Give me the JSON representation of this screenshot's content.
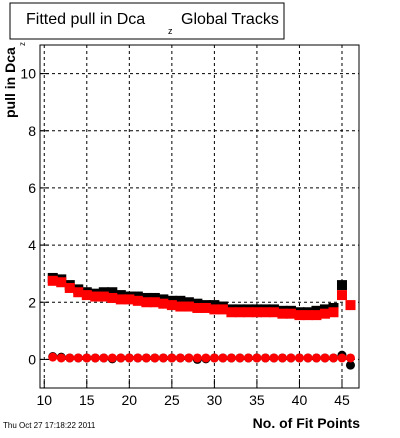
{
  "chart_data": {
    "type": "scatter",
    "title": "Fitted pull in Dca",
    "title_subscript": "z",
    "title_tail": "Global Tracks",
    "y_label": "pull in Dca",
    "y_label_subscript": "z",
    "x_label": "No. of Fit Points",
    "timestamp": "Thu Oct 27 17:18:22 2011",
    "xlim": [
      9.5,
      47
    ],
    "xticks": [
      10,
      15,
      20,
      25,
      30,
      35,
      40,
      45
    ],
    "ylim": [
      -1,
      11
    ],
    "yticks": [
      0,
      2,
      4,
      6,
      8,
      10
    ],
    "grid": true,
    "x": [
      11,
      12,
      13,
      14,
      15,
      16,
      17,
      18,
      19,
      20,
      21,
      22,
      23,
      24,
      25,
      26,
      27,
      28,
      29,
      30,
      31,
      32,
      33,
      34,
      35,
      36,
      37,
      38,
      39,
      40,
      41,
      42,
      43,
      44,
      45,
      46
    ],
    "series": [
      {
        "color": "#000000",
        "marker": "square",
        "values": [
          2.85,
          2.8,
          2.6,
          2.45,
          2.35,
          2.3,
          2.35,
          2.35,
          2.25,
          2.2,
          2.2,
          2.15,
          2.15,
          2.1,
          2.05,
          2.05,
          2.0,
          1.95,
          1.9,
          1.9,
          1.85,
          1.75,
          1.75,
          1.75,
          1.75,
          1.75,
          1.75,
          1.7,
          1.7,
          1.65,
          1.65,
          1.7,
          1.75,
          1.8,
          2.6,
          null
        ]
      },
      {
        "color": "#ff0000",
        "marker": "square",
        "values": [
          2.75,
          2.7,
          2.5,
          2.35,
          2.25,
          2.2,
          2.2,
          2.15,
          2.1,
          2.1,
          2.05,
          2.0,
          2.0,
          1.95,
          1.9,
          1.85,
          1.85,
          1.8,
          1.8,
          1.75,
          1.75,
          1.65,
          1.65,
          1.65,
          1.65,
          1.65,
          1.65,
          1.6,
          1.6,
          1.55,
          1.55,
          1.55,
          1.6,
          1.65,
          2.25,
          1.9
        ]
      },
      {
        "color": "#000000",
        "marker": "circle",
        "values": [
          0.1,
          0.08,
          0.05,
          0.05,
          0.05,
          0.05,
          0.05,
          0.02,
          0.05,
          0.05,
          0.05,
          0.05,
          0.05,
          0.05,
          0.05,
          0.05,
          0.05,
          0.0,
          0.02,
          0.05,
          0.05,
          0.05,
          0.05,
          0.05,
          0.05,
          0.05,
          0.05,
          0.05,
          0.05,
          0.05,
          0.05,
          0.05,
          0.05,
          0.05,
          0.15,
          -0.2
        ]
      },
      {
        "color": "#ff0000",
        "marker": "circle",
        "values": [
          0.08,
          0.05,
          0.05,
          0.05,
          0.05,
          0.05,
          0.05,
          0.05,
          0.05,
          0.05,
          0.05,
          0.05,
          0.05,
          0.05,
          0.05,
          0.05,
          0.05,
          0.05,
          0.05,
          0.05,
          0.05,
          0.05,
          0.05,
          0.05,
          0.05,
          0.05,
          0.05,
          0.05,
          0.05,
          0.05,
          0.05,
          0.05,
          0.05,
          0.05,
          0.05,
          0.05
        ]
      }
    ]
  }
}
